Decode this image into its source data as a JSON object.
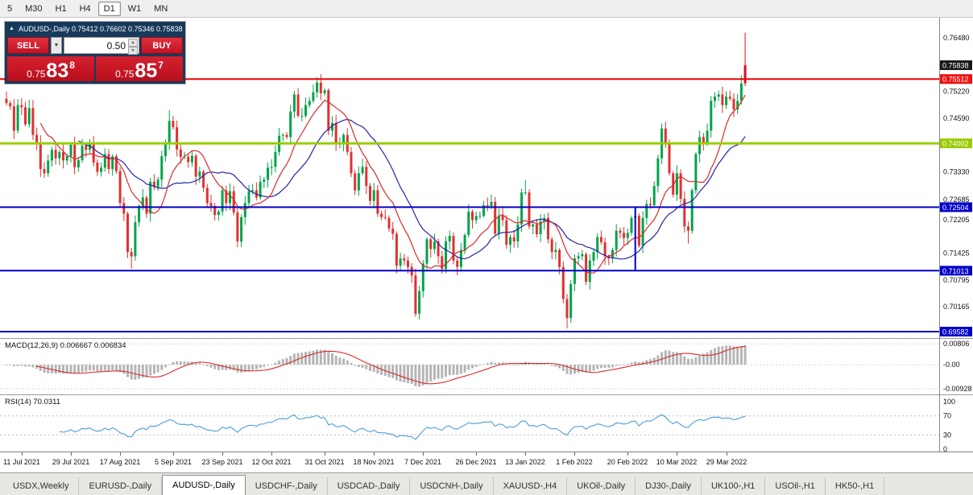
{
  "icons": {
    "collapse_triangle": "▲",
    "dropdown_arrow": "▼",
    "spinner_up": "▲",
    "spinner_down": "▼"
  },
  "toolbar": {
    "timeframes": [
      {
        "label": "5",
        "active": false
      },
      {
        "label": "M30",
        "active": false
      },
      {
        "label": "H1",
        "active": false
      },
      {
        "label": "H4",
        "active": false
      },
      {
        "label": "D1",
        "active": true
      },
      {
        "label": "W1",
        "active": false
      },
      {
        "label": "MN",
        "active": false
      }
    ]
  },
  "trade_panel": {
    "title_line": "AUDUSD-,Daily 0.75412 0.76602 0.75346 0.75838",
    "sell_label": "SELL",
    "buy_label": "BUY",
    "volume": "0.50",
    "sell_price": {
      "prefix": "0.75",
      "big": "83",
      "sup": "8"
    },
    "buy_price": {
      "prefix": "0.75",
      "big": "85",
      "sup": "7"
    }
  },
  "tabs": [
    {
      "label": "USDX,Weekly",
      "active": false
    },
    {
      "label": "EURUSD-,Daily",
      "active": false
    },
    {
      "label": "AUDUSD-,Daily",
      "active": true
    },
    {
      "label": "USDCHF-,Daily",
      "active": false
    },
    {
      "label": "USDCAD-,Daily",
      "active": false
    },
    {
      "label": "USDCNH-,Daily",
      "active": false
    },
    {
      "label": "XAUUSD-,H4",
      "active": false
    },
    {
      "label": "UKOil-,Daily",
      "active": false
    },
    {
      "label": "DJ30-,Daily",
      "active": false
    },
    {
      "label": "UK100-,H1",
      "active": false
    },
    {
      "label": "USOil-,H1",
      "active": false
    },
    {
      "label": "HK50-,H1",
      "active": false
    }
  ],
  "colors": {
    "bull": "#00a34a",
    "bear": "#e03131",
    "last_candle": "#d8101f",
    "ma_fast": "#d92b2b",
    "ma_slow": "#2525a8",
    "macd_hist": "#b5b5b5",
    "macd_signal": "#d92b2b",
    "rsi_line": "#4a9fd8",
    "hline_red": "#f00000",
    "hline_green": "#99cc00",
    "hline_blue": "#0000c8",
    "last_price_tag": "#1a1a1a",
    "panel_navy": "#173a5c",
    "trade_red": "#c6101f"
  },
  "chart_data": {
    "type": "candlestick",
    "symbol": "AUDUSD-,Daily",
    "last_ohlc": {
      "open": 0.75412,
      "high": 0.76602,
      "low": 0.75346,
      "close": 0.75838
    },
    "last_candle_render": "red",
    "first_open": 0.7505,
    "closes": [
      0.7495,
      0.7487,
      0.743,
      0.749,
      0.7485,
      0.7445,
      0.7483,
      0.742,
      0.74,
      0.734,
      0.733,
      0.736,
      0.7385,
      0.7365,
      0.738,
      0.736,
      0.737,
      0.7397,
      0.7344,
      0.7361,
      0.7395,
      0.7385,
      0.74,
      0.7355,
      0.7333,
      0.7343,
      0.7375,
      0.734,
      0.737,
      0.7335,
      0.726,
      0.7235,
      0.7145,
      0.7135,
      0.7215,
      0.7253,
      0.7273,
      0.7235,
      0.731,
      0.7297,
      0.7315,
      0.737,
      0.74,
      0.7453,
      0.7438,
      0.7386,
      0.7368,
      0.7369,
      0.7356,
      0.7371,
      0.7322,
      0.7334,
      0.7296,
      0.726,
      0.7253,
      0.7232,
      0.724,
      0.729,
      0.726,
      0.7288,
      0.7238,
      0.717,
      0.7227,
      0.726,
      0.7288,
      0.729,
      0.7273,
      0.731,
      0.7315,
      0.7343,
      0.7345,
      0.738,
      0.7418,
      0.742,
      0.7415,
      0.7475,
      0.7515,
      0.7465,
      0.7465,
      0.749,
      0.75,
      0.752,
      0.7543,
      0.7518,
      0.7525,
      0.743,
      0.7448,
      0.74,
      0.74,
      0.742,
      0.738,
      0.733,
      0.729,
      0.733,
      0.7345,
      0.73,
      0.7265,
      0.729,
      0.7235,
      0.7227,
      0.7225,
      0.72,
      0.7188,
      0.7113,
      0.713,
      0.7125,
      0.711,
      0.709,
      0.7,
      0.7053,
      0.7118,
      0.7175,
      0.7152,
      0.717,
      0.7135,
      0.7105,
      0.717,
      0.7183,
      0.7125,
      0.711,
      0.715,
      0.7185,
      0.724,
      0.722,
      0.723,
      0.723,
      0.7255,
      0.7253,
      0.7263,
      0.7188,
      0.723,
      0.722,
      0.7162,
      0.718,
      0.717,
      0.721,
      0.7285,
      0.7285,
      0.7205,
      0.721,
      0.7187,
      0.7217,
      0.7225,
      0.7175,
      0.7145,
      0.715,
      0.711,
      0.7035,
      0.699,
      0.707,
      0.713,
      0.7135,
      0.714,
      0.7075,
      0.7125,
      0.7145,
      0.718,
      0.7168,
      0.7135,
      0.713,
      0.715,
      0.7195,
      0.719,
      0.7178,
      0.719,
      0.7225,
      0.723,
      0.716,
      0.7225,
      0.7258,
      0.7255,
      0.73,
      0.7365,
      0.7435,
      0.74,
      0.733,
      0.728,
      0.733,
      0.727,
      0.7205,
      0.7195,
      0.729,
      0.7375,
      0.7415,
      0.74,
      0.743,
      0.75,
      0.751,
      0.7515,
      0.749,
      0.751,
      0.7505,
      0.748,
      0.75,
      0.7541,
      0.75838
    ],
    "wick_overrides": {
      "33": {
        "low": 0.7106
      },
      "43": {
        "high": 0.7478
      },
      "82": {
        "high": 0.7556
      },
      "108": {
        "low": 0.6993
      },
      "137": {
        "high": 0.7314
      },
      "148": {
        "low": 0.6966
      },
      "180": {
        "low": 0.7165
      }
    },
    "price_axis": {
      "ticks": [
        "0.76480",
        "0.75220",
        "0.74590",
        "0.73330",
        "0.72685",
        "0.72205",
        "0.71425",
        "0.70795",
        "0.70165"
      ],
      "tags": [
        {
          "text": "0.75838",
          "value": 0.75838,
          "color": "#1a1a1a"
        },
        {
          "text": "0.75512",
          "value": 0.75512,
          "color": "#ee1111"
        },
        {
          "text": "0.74002",
          "value": 0.74002,
          "color": "#99cc00"
        },
        {
          "text": "0.72504",
          "value": 0.72504,
          "color": "#0000c8"
        },
        {
          "text": "0.71013",
          "value": 0.71013,
          "color": "#0000c8"
        },
        {
          "text": "0.69582",
          "value": 0.69582,
          "color": "#0000c8"
        }
      ]
    },
    "hlines": [
      {
        "value": 0.75512,
        "color": "#f00000",
        "width": 2
      },
      {
        "value": 0.74002,
        "color": "#99cc00",
        "width": 3
      },
      {
        "value": 0.72504,
        "color": "#0000c8",
        "width": 2
      },
      {
        "value": 0.71013,
        "color": "#0000c8",
        "width": 2
      },
      {
        "value": 0.69582,
        "color": "#0000c8",
        "width": 2
      }
    ],
    "blue_box_right_bar": 166,
    "x_ticks": [
      {
        "label": "11 Jul 2021",
        "bar": 4
      },
      {
        "label": "29 Jul 2021",
        "bar": 17
      },
      {
        "label": "17 Aug 2021",
        "bar": 30
      },
      {
        "label": "5 Sep 2021",
        "bar": 44
      },
      {
        "label": "23 Sep 2021",
        "bar": 57
      },
      {
        "label": "12 Oct 2021",
        "bar": 70
      },
      {
        "label": "31 Oct 2021",
        "bar": 84
      },
      {
        "label": "18 Nov 2021",
        "bar": 97
      },
      {
        "label": "7 Dec 2021",
        "bar": 110
      },
      {
        "label": "26 Dec 2021",
        "bar": 124
      },
      {
        "label": "13 Jan 2022",
        "bar": 137
      },
      {
        "label": "1 Feb 2022",
        "bar": 150
      },
      {
        "label": "20 Feb 2022",
        "bar": 164
      },
      {
        "label": "10 Mar 2022",
        "bar": 177
      },
      {
        "label": "29 Mar 2022",
        "bar": 190
      }
    ],
    "indicators": {
      "ma_fast": {
        "period": 10
      },
      "ma_slow": {
        "period": 20
      },
      "macd": {
        "label": "MACD(12,26,9) 0.006667 0.006834",
        "fast": 12,
        "slow": 26,
        "signal": 9,
        "axis_labels": [
          {
            "text": "0.00806",
            "value": 0.00806
          },
          {
            "text": "-0.00",
            "value": 0
          },
          {
            "text": "-0.00928",
            "value": -0.00928
          }
        ]
      },
      "rsi": {
        "label": "RSI(14) 70.0311",
        "period": 14,
        "levels": [
          70,
          30
        ],
        "axis_labels": [
          {
            "text": "100",
            "value": 100
          },
          {
            "text": "70",
            "value": 70
          },
          {
            "text": "30",
            "value": 30
          },
          {
            "text": "0",
            "value": 0
          }
        ]
      }
    }
  }
}
